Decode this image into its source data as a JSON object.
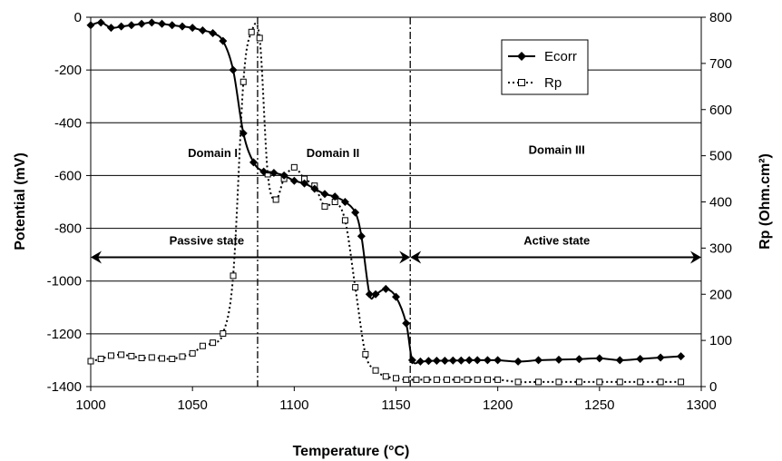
{
  "chart_data": {
    "type": "line",
    "xlabel": "Temperature (°C)",
    "ylabel_left": "Potential (mV)",
    "ylabel_right": "Rp (Ohm.cm²)",
    "xlim": [
      1000,
      1300
    ],
    "ylim_left": [
      -1400,
      0
    ],
    "ylim_right": [
      0,
      800
    ],
    "x_ticks": [
      1000,
      1050,
      1100,
      1150,
      1200,
      1250,
      1300
    ],
    "y_ticks_left": [
      0,
      -200,
      -400,
      -600,
      -800,
      -1000,
      -1200,
      -1400
    ],
    "y_ticks_right": [
      800,
      700,
      600,
      500,
      400,
      300,
      200,
      100,
      0
    ],
    "grid": "horizontal",
    "legend_position": "top-right",
    "series": [
      {
        "name": "Ecorr",
        "axis": "left",
        "color": "#000000",
        "line": "solid",
        "marker": "filled-diamond",
        "x": [
          1000,
          1005,
          1010,
          1015,
          1020,
          1025,
          1030,
          1035,
          1040,
          1045,
          1050,
          1055,
          1060,
          1065,
          1070,
          1075,
          1080,
          1085,
          1090,
          1095,
          1100,
          1105,
          1110,
          1115,
          1120,
          1125,
          1130,
          1133,
          1137,
          1140,
          1145,
          1150,
          1155,
          1158,
          1162,
          1166,
          1170,
          1174,
          1178,
          1182,
          1186,
          1190,
          1195,
          1200,
          1210,
          1220,
          1230,
          1240,
          1250,
          1260,
          1270,
          1280,
          1290
        ],
        "y": [
          -30,
          -20,
          -40,
          -35,
          -30,
          -25,
          -20,
          -25,
          -30,
          -35,
          -40,
          -50,
          -60,
          -90,
          -200,
          -440,
          -550,
          -585,
          -590,
          -600,
          -620,
          -630,
          -650,
          -670,
          -680,
          -700,
          -740,
          -830,
          -1050,
          -1050,
          -1030,
          -1060,
          -1160,
          -1300,
          -1305,
          -1303,
          -1302,
          -1302,
          -1301,
          -1301,
          -1300,
          -1300,
          -1300,
          -1300,
          -1305,
          -1300,
          -1298,
          -1296,
          -1293,
          -1300,
          -1295,
          -1290,
          -1285
        ]
      },
      {
        "name": "Rp",
        "axis": "right",
        "color": "#000000",
        "line": "dotted",
        "marker": "open-square",
        "x": [
          1000,
          1005,
          1010,
          1015,
          1020,
          1025,
          1030,
          1035,
          1040,
          1045,
          1050,
          1055,
          1060,
          1065,
          1070,
          1075,
          1079,
          1083,
          1087,
          1091,
          1095,
          1100,
          1105,
          1110,
          1115,
          1120,
          1125,
          1130,
          1135,
          1140,
          1145,
          1150,
          1155,
          1160,
          1165,
          1170,
          1175,
          1180,
          1185,
          1190,
          1195,
          1200,
          1210,
          1220,
          1230,
          1240,
          1250,
          1260,
          1270,
          1280,
          1290
        ],
        "y": [
          55,
          60,
          67,
          69,
          66,
          62,
          63,
          61,
          60,
          65,
          72,
          88,
          95,
          115,
          240,
          660,
          768,
          755,
          460,
          405,
          450,
          475,
          450,
          435,
          390,
          400,
          360,
          215,
          70,
          35,
          22,
          18,
          15,
          15,
          15,
          15,
          15,
          15,
          15,
          15,
          15,
          15,
          10,
          10,
          10,
          10,
          10,
          10,
          10,
          10,
          10
        ]
      }
    ],
    "vertical_dividers": [
      {
        "x": 1082,
        "style": "dash-dot"
      },
      {
        "x": 1157,
        "style": "dash-dot"
      }
    ],
    "annotations": [
      {
        "text": "Domain I",
        "x": 1060,
        "y": -530
      },
      {
        "text": "Domain II",
        "x": 1119,
        "y": -530
      },
      {
        "text": "Domain III",
        "x": 1229,
        "y": -518
      },
      {
        "text": "Passive state",
        "x": 1057,
        "y": -862
      },
      {
        "text": "Active state",
        "x": 1229,
        "y": -862
      }
    ],
    "arrows": [
      {
        "x_from": 1000,
        "x_to": 1157,
        "y": -910,
        "heads": "both"
      },
      {
        "x_from": 1157,
        "x_to": 1300,
        "y": -910,
        "heads": "both"
      }
    ]
  }
}
